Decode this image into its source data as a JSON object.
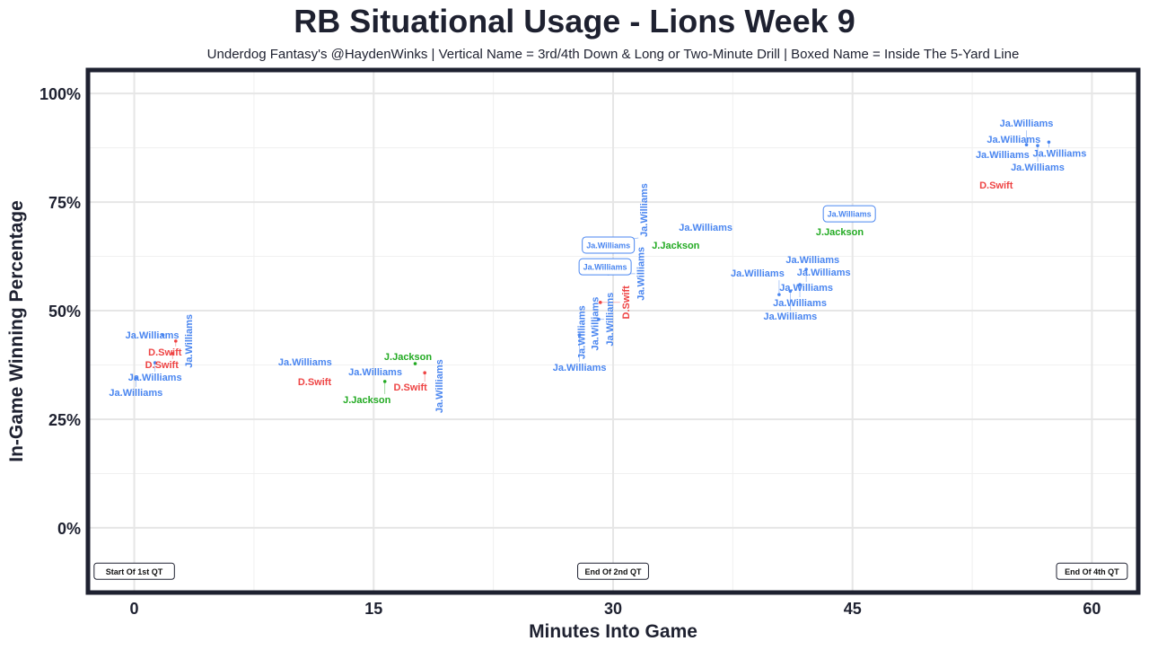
{
  "chart_data": {
    "type": "scatter",
    "title": "RB Situational Usage - Lions Week 9",
    "subtitle": "Underdog Fantasy's @HaydenWinks | Vertical Name = 3rd/4th Down & Long or Two-Minute Drill | Boxed Name = Inside The 5-Yard Line",
    "xlabel": "Minutes Into Game",
    "ylabel": "In-Game Winning Percentage",
    "xlim": [
      -2.9,
      62.9
    ],
    "ylim": [
      -14.9,
      105.4
    ],
    "xticks": [
      0,
      15,
      30,
      45,
      60
    ],
    "xtick_labels": [
      "0",
      "15",
      "30",
      "45",
      "60"
    ],
    "yticks": [
      0,
      25,
      50,
      75,
      100
    ],
    "ytick_labels": [
      "0%",
      "25%",
      "50%",
      "75%",
      "100%"
    ],
    "grid": true,
    "colors": {
      "Ja.Williams": "#4a86f0",
      "D.Swift": "#ee4444",
      "J.Jackson": "#22aa22"
    },
    "points": [
      {
        "name": "Ja.Williams",
        "x": 1.8,
        "y": 44.4,
        "style": "normal"
      },
      {
        "name": "D.Swift",
        "x": 2.6,
        "y": 43.0,
        "style": "normal"
      },
      {
        "name": "D.Swift",
        "x": 2.4,
        "y": 40.1,
        "style": "normal"
      },
      {
        "name": "Ja.Williams",
        "x": 1.3,
        "y": 38.0,
        "style": "normal"
      },
      {
        "name": "Ja.Williams",
        "x": 0.1,
        "y": 34.5,
        "style": "normal"
      },
      {
        "name": "Ja.Williams",
        "x": 3.4,
        "y": 43.0,
        "style": "vertical"
      },
      {
        "name": "Ja.Williams",
        "x": 10.7,
        "y": 38.2,
        "style": "normal"
      },
      {
        "name": "D.Swift",
        "x": 11.3,
        "y": 33.7,
        "style": "normal"
      },
      {
        "name": "Ja.Williams",
        "x": 15.1,
        "y": 36.0,
        "style": "normal"
      },
      {
        "name": "J.Jackson",
        "x": 17.6,
        "y": 37.8,
        "style": "normal"
      },
      {
        "name": "D.Swift",
        "x": 18.2,
        "y": 35.7,
        "style": "normal"
      },
      {
        "name": "J.Jackson",
        "x": 15.7,
        "y": 33.7,
        "style": "normal"
      },
      {
        "name": "Ja.Williams",
        "x": 19.1,
        "y": 32.6,
        "style": "vertical"
      },
      {
        "name": "Ja.Williams",
        "x": 27.9,
        "y": 44.4,
        "style": "normal"
      },
      {
        "name": "Ja.Williams",
        "x": 28.0,
        "y": 45.0,
        "style": "vertical"
      },
      {
        "name": "Ja.Williams",
        "x": 28.4,
        "y": 47.0,
        "style": "vertical"
      },
      {
        "name": "Ja.Williams",
        "x": 29.1,
        "y": 48.0,
        "style": "vertical"
      },
      {
        "name": "D.Swift",
        "x": 29.2,
        "y": 51.9,
        "style": "vertical"
      },
      {
        "name": "Ja.Williams",
        "x": 29.7,
        "y": 58.5,
        "style": "vertical"
      },
      {
        "name": "Ja.Williams",
        "x": 29.9,
        "y": 65.7,
        "style": "vertical"
      },
      {
        "name": "Ja.Williams",
        "x": 29.7,
        "y": 65.1,
        "style": "boxed"
      },
      {
        "name": "Ja.Williams",
        "x": 29.5,
        "y": 60.1,
        "style": "boxed"
      },
      {
        "name": "J.Jackson",
        "x": 33.7,
        "y": 65.9,
        "style": "normal"
      },
      {
        "name": "Ja.Williams",
        "x": 35.8,
        "y": 69.2,
        "style": "normal"
      },
      {
        "name": "Ja.Williams",
        "x": 44.8,
        "y": 72.3,
        "style": "boxed"
      },
      {
        "name": "J.Jackson",
        "x": 44.2,
        "y": 69.0,
        "style": "normal"
      },
      {
        "name": "Ja.Williams",
        "x": 42.5,
        "y": 61.8,
        "style": "normal"
      },
      {
        "name": "Ja.Williams",
        "x": 43.2,
        "y": 60.5,
        "style": "normal"
      },
      {
        "name": "Ja.Williams",
        "x": 42.1,
        "y": 59.5,
        "style": "normal"
      },
      {
        "name": "Ja.Williams",
        "x": 41.7,
        "y": 56.0,
        "style": "normal"
      },
      {
        "name": "Ja.Williams",
        "x": 41.1,
        "y": 54.5,
        "style": "normal"
      },
      {
        "name": "Ja.Williams",
        "x": 40.4,
        "y": 53.7,
        "style": "normal"
      },
      {
        "name": "Ja.Williams",
        "x": 54.4,
        "y": 86.0,
        "style": "normal"
      },
      {
        "name": "Ja.Williams",
        "x": 55.1,
        "y": 87.8,
        "style": "normal"
      },
      {
        "name": "Ja.Williams",
        "x": 55.9,
        "y": 88.2,
        "style": "normal"
      },
      {
        "name": "Ja.Williams",
        "x": 56.6,
        "y": 88.0,
        "style": "normal"
      },
      {
        "name": "Ja.Williams",
        "x": 57.3,
        "y": 88.8,
        "style": "normal"
      },
      {
        "name": "D.Swift",
        "x": 54.0,
        "y": 78.9,
        "style": "normal"
      }
    ],
    "annotations": [
      {
        "text": "Start Of 1st QT",
        "x": 0,
        "y": -10
      },
      {
        "text": "End Of 2nd QT",
        "x": 30,
        "y": -10
      },
      {
        "text": "End Of 4th QT",
        "x": 60,
        "y": -10
      }
    ]
  }
}
